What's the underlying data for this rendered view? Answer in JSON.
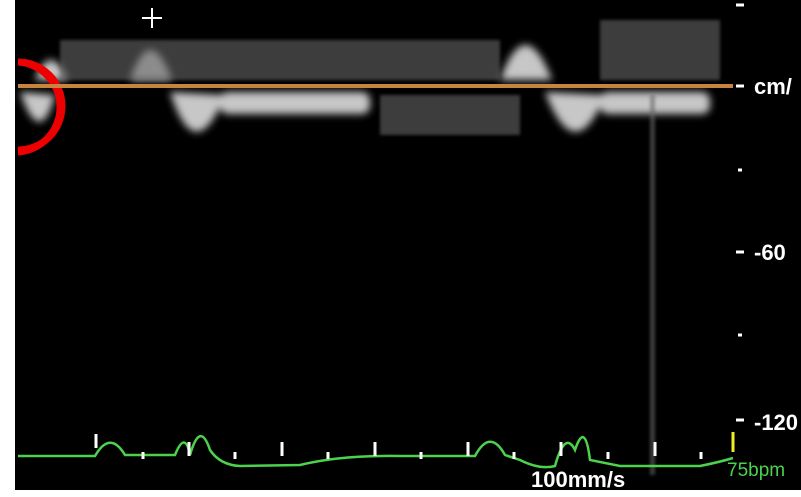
{
  "scale": {
    "unit": "cm/",
    "labels": [
      "-60",
      "-120"
    ]
  },
  "sweep_speed": "100mm/s",
  "heart_rate": "75bpm"
}
